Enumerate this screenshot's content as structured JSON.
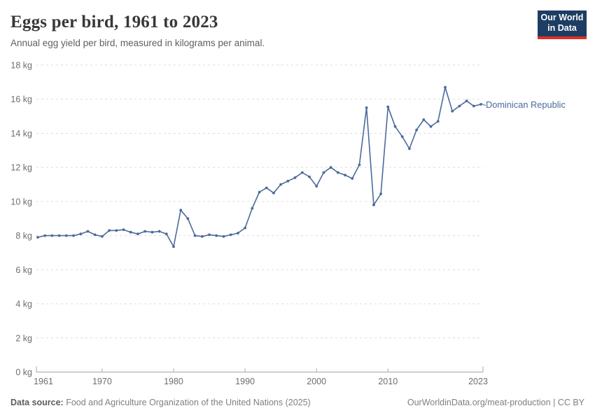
{
  "header": {
    "title": "Eggs per bird, 1961 to 2023",
    "subtitle": "Annual egg yield per bird, measured in kilograms per animal.",
    "logo": {
      "line1": "Our World",
      "line2": "in Data"
    }
  },
  "chart_data": {
    "type": "line",
    "title": "Eggs per bird, 1961 to 2023",
    "xlabel": "",
    "ylabel": "kg",
    "xlim": [
      1961,
      2023
    ],
    "ylim": [
      0,
      18
    ],
    "grid": "horizontal-dashed",
    "legend_position": "right-of-last-point",
    "x_ticks": [
      {
        "year": 1961,
        "label": "1961"
      },
      {
        "year": 1970,
        "label": "1970"
      },
      {
        "year": 1980,
        "label": "1980"
      },
      {
        "year": 1990,
        "label": "1990"
      },
      {
        "year": 2000,
        "label": "2000"
      },
      {
        "year": 2010,
        "label": "2010"
      },
      {
        "year": 2023,
        "label": "2023"
      }
    ],
    "y_ticks": [
      {
        "value": 0,
        "label": "0 kg"
      },
      {
        "value": 2,
        "label": "2 kg"
      },
      {
        "value": 4,
        "label": "4 kg"
      },
      {
        "value": 6,
        "label": "6 kg"
      },
      {
        "value": 8,
        "label": "8 kg"
      },
      {
        "value": 10,
        "label": "10 kg"
      },
      {
        "value": 12,
        "label": "12 kg"
      },
      {
        "value": 14,
        "label": "14 kg"
      },
      {
        "value": 16,
        "label": "16 kg"
      },
      {
        "value": 18,
        "label": "18 kg"
      }
    ],
    "series": [
      {
        "name": "Dominican Republic",
        "color": "#4C6A9C",
        "years": [
          1961,
          1962,
          1963,
          1964,
          1965,
          1966,
          1967,
          1968,
          1969,
          1970,
          1971,
          1972,
          1973,
          1974,
          1975,
          1976,
          1977,
          1978,
          1979,
          1980,
          1981,
          1982,
          1983,
          1984,
          1985,
          1986,
          1987,
          1988,
          1989,
          1990,
          1991,
          1992,
          1993,
          1994,
          1995,
          1996,
          1997,
          1998,
          1999,
          2000,
          2001,
          2002,
          2003,
          2004,
          2005,
          2006,
          2007,
          2008,
          2009,
          2010,
          2011,
          2012,
          2013,
          2014,
          2015,
          2016,
          2017,
          2018,
          2019,
          2020,
          2021,
          2022,
          2023
        ],
        "values": [
          7.9,
          8.0,
          8.0,
          8.0,
          8.0,
          8.0,
          8.1,
          8.25,
          8.05,
          7.95,
          8.3,
          8.3,
          8.35,
          8.2,
          8.1,
          8.25,
          8.2,
          8.25,
          8.1,
          7.35,
          9.5,
          9.0,
          8.0,
          7.95,
          8.05,
          8.0,
          7.95,
          8.05,
          8.15,
          8.45,
          9.6,
          10.55,
          10.8,
          10.5,
          11.0,
          11.2,
          11.4,
          11.7,
          11.45,
          10.9,
          11.7,
          12.0,
          11.7,
          11.55,
          11.35,
          12.15,
          15.5,
          9.8,
          10.45,
          15.55,
          14.4,
          13.8,
          13.1,
          14.2,
          14.8,
          14.4,
          14.7,
          16.7,
          15.3,
          15.6,
          15.9,
          15.6,
          15.7
        ]
      }
    ]
  },
  "footer": {
    "source_label": "Data source:",
    "source_text": " Food and Agriculture Organization of the United Nations (2025)",
    "link_text": "OurWorldinData.org/meat-production",
    "separator": " | ",
    "license": "CC BY"
  }
}
